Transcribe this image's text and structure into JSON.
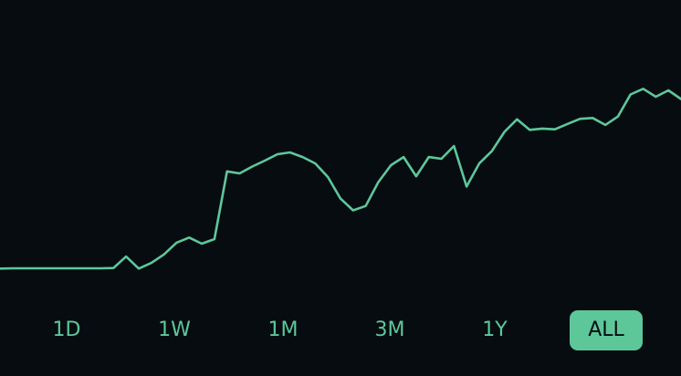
{
  "colors": {
    "background": "#070c11",
    "accent": "#5ec79a",
    "active_text": "#070c11"
  },
  "time_range": {
    "options": [
      "1D",
      "1W",
      "1M",
      "3M",
      "1Y",
      "ALL"
    ],
    "selected": "ALL"
  },
  "chart_data": {
    "type": "line",
    "title": "",
    "xlabel": "",
    "ylabel": "",
    "grid": false,
    "legend": "none",
    "ylim": [
      0,
      100
    ],
    "series": [
      {
        "name": "value",
        "values": [
          3.1,
          3.2,
          3.2,
          3.2,
          3.2,
          3.2,
          3.2,
          3.2,
          3.2,
          3.3,
          7.8,
          3.1,
          5.3,
          8.6,
          13.2,
          15.2,
          12.8,
          14.6,
          41.0,
          40.2,
          42.9,
          45.2,
          47.7,
          48.4,
          46.6,
          44.1,
          38.8,
          30.4,
          25.8,
          27.5,
          36.8,
          43.4,
          46.6,
          39.1,
          46.6,
          45.9,
          50.9,
          35.1,
          44.1,
          48.9,
          56.4,
          61.3,
          57.2,
          57.7,
          57.4,
          59.5,
          61.5,
          61.8,
          59.1,
          62.4,
          71.0,
          73.2,
          70.1,
          72.6,
          69.2
        ]
      }
    ]
  }
}
